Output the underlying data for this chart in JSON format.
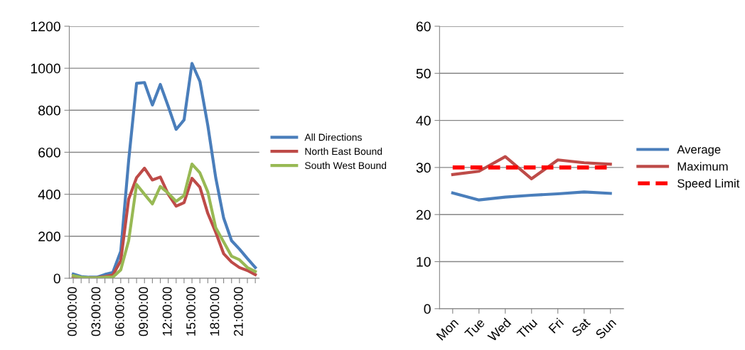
{
  "chart_data": [
    {
      "type": "line",
      "categories": [
        "00:00:00",
        null,
        null,
        "03:00:00",
        null,
        null,
        "06:00:00",
        null,
        null,
        "09:00:00",
        null,
        null,
        "12:00:00",
        null,
        null,
        "15:00:00",
        null,
        null,
        "18:00:00",
        null,
        null,
        "21:00:00",
        null,
        null
      ],
      "ylim": [
        0,
        1200
      ],
      "yticks": [
        0,
        200,
        400,
        600,
        800,
        1000,
        1200
      ],
      "grid": "y",
      "legend": "right",
      "marker": "none",
      "series": [
        {
          "name": "All Directions",
          "color": "#4a7ebb",
          "values": [
            20,
            8,
            5,
            5,
            18,
            28,
            128,
            560,
            928,
            932,
            825,
            923,
            819,
            709,
            754,
            1023,
            938,
            728,
            479,
            287,
            179,
            139,
            94,
            51
          ]
        },
        {
          "name": "North East Bound",
          "color": "#be4b48",
          "values": [
            10,
            3,
            2,
            3,
            8,
            15,
            83,
            377,
            479,
            524,
            468,
            482,
            400,
            343,
            360,
            476,
            434,
            309,
            219,
            117,
            77,
            51,
            37,
            17
          ]
        },
        {
          "name": "South West Bound",
          "color": "#98b954",
          "values": [
            12,
            5,
            2,
            2,
            5,
            5,
            40,
            179,
            447,
            400,
            354,
            437,
            405,
            366,
            394,
            544,
            502,
            411,
            241,
            173,
            105,
            88,
            51,
            32
          ]
        }
      ]
    },
    {
      "type": "line",
      "categories": [
        "Mon",
        "Tue",
        "Wed",
        "Thu",
        "Fri",
        "Sat",
        "Sun"
      ],
      "ylim": [
        0,
        60
      ],
      "yticks": [
        0,
        10,
        20,
        30,
        40,
        50,
        60
      ],
      "grid": "y",
      "legend": "right",
      "marker": "none",
      "series": [
        {
          "name": "Average",
          "color": "#4a7ebb",
          "values": [
            24.6,
            23.1,
            23.7,
            24.1,
            24.4,
            24.8,
            24.5
          ]
        },
        {
          "name": "Maximum",
          "color": "#be4b48",
          "values": [
            28.5,
            29.2,
            32.3,
            27.6,
            31.6,
            31.0,
            30.7
          ]
        },
        {
          "name": "Speed Limit",
          "color": "#ff0000",
          "line_style": "dashed",
          "values": [
            30,
            30,
            30,
            30,
            30,
            30,
            30
          ]
        }
      ]
    }
  ]
}
